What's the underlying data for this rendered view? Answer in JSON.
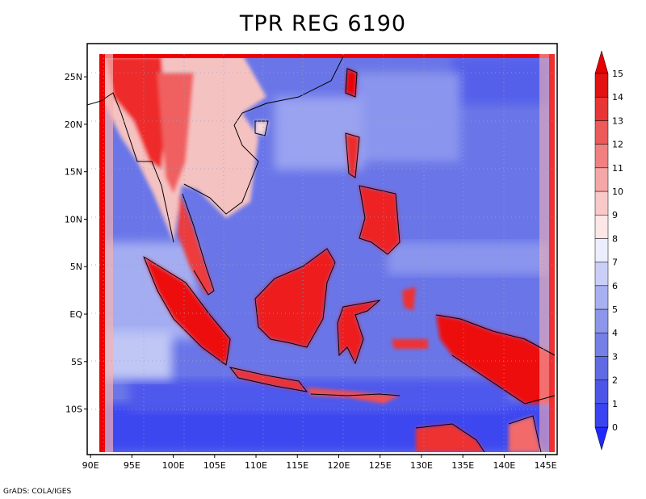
{
  "title": "TPR REG 6190",
  "credit": "GrADS: COLA/IGES",
  "x_axis": {
    "ticks": [
      "90E",
      "95E",
      "100E",
      "105E",
      "110E",
      "115E",
      "120E",
      "125E",
      "130E",
      "135E",
      "140E",
      "145E"
    ],
    "values": [
      90,
      95,
      100,
      105,
      110,
      115,
      120,
      125,
      130,
      135,
      140,
      145
    ],
    "range": [
      89.6,
      146.4
    ]
  },
  "y_axis": {
    "ticks": [
      "25N",
      "20N",
      "15N",
      "10N",
      "5N",
      "EQ",
      "5S",
      "10S"
    ],
    "values": [
      25,
      20,
      15,
      10,
      5,
      0,
      -5,
      -10
    ],
    "range": [
      -14.8,
      28.5
    ]
  },
  "colorbar": {
    "labels": [
      "0",
      "1",
      "2",
      "3",
      "4",
      "5",
      "6",
      "7",
      "8",
      "9",
      "10",
      "11",
      "12",
      "13",
      "14",
      "15"
    ],
    "colors": [
      "#1f29ff",
      "#3a44f2",
      "#4c57ea",
      "#5f6ae4",
      "#7480e6",
      "#8c96ea",
      "#a7b0f0",
      "#c9cff7",
      "#eceefd",
      "#fde6e6",
      "#f9c8c8",
      "#f5a6a6",
      "#f18080",
      "#ec5a5a",
      "#e83535",
      "#e21212",
      "#e60000"
    ]
  },
  "map": {
    "grid": "dotted",
    "field_colors": {
      "ocean_low": "#3c46f0",
      "ocean_mid": "#6a76e8",
      "ocean_high": "#a4adf2",
      "land_low": "#f5c2c2",
      "land_high": "#ee0000"
    }
  }
}
